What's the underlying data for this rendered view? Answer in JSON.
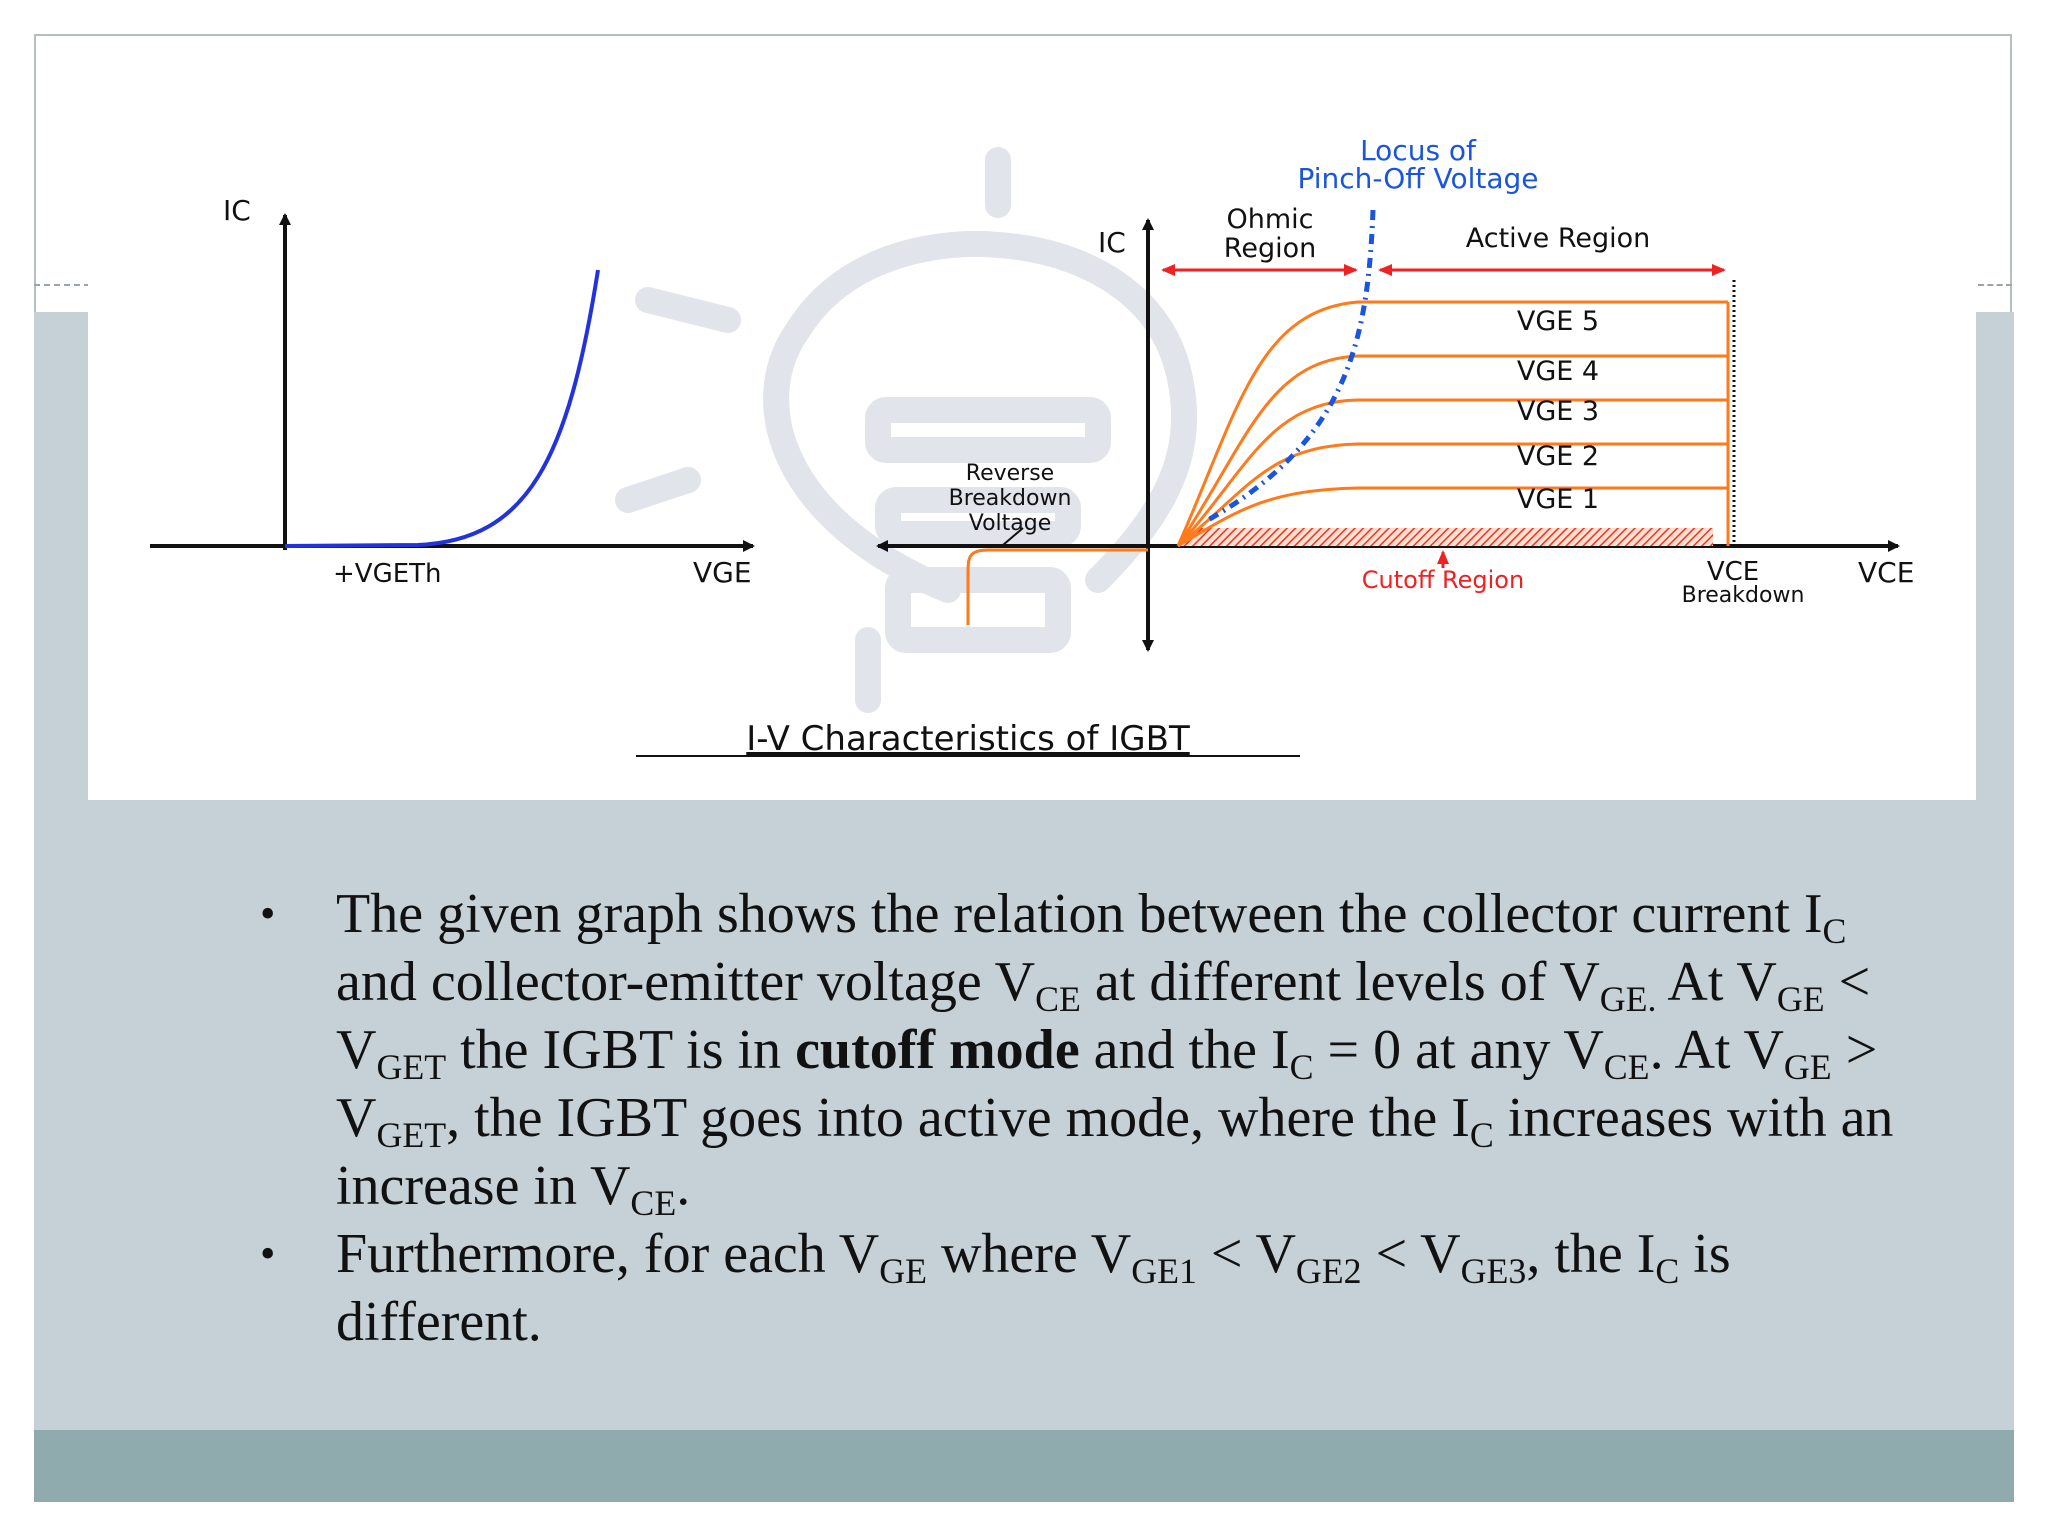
{
  "diagram": {
    "title": "I-V Characteristics of IGBT",
    "left": {
      "y_axis": "IC",
      "threshold_label": "+VGETh",
      "x_axis": "VGE"
    },
    "right": {
      "y_axis": "IC",
      "x_axis": "VCE",
      "locus_label": [
        "Locus of",
        "Pinch-Off Voltage"
      ],
      "ohmic_label": [
        "Ohmic",
        "Region"
      ],
      "active_label": "Active Region",
      "reverse_label": [
        "Reverse",
        "Breakdown",
        "Voltage"
      ],
      "cutoff_label": "Cutoff Region",
      "breakdown_label": [
        "VCE",
        "Breakdown"
      ],
      "curves": [
        "VGE 5",
        "VGE 4",
        "VGE 3",
        "VGE 2",
        "VGE 1"
      ]
    },
    "colors": {
      "transfer_curve": "#2233dd",
      "output_curves": "#ff7a1a",
      "locus": "#1a55dd",
      "arrows": "#ee2222",
      "axes": "#111111"
    }
  },
  "bullets": [
    {
      "parts": [
        {
          "t": "The given graph shows the relation between the collector current I"
        },
        {
          "t": "C",
          "s": "sub"
        },
        {
          "t": " and collector-emitter voltage V"
        },
        {
          "t": "CE",
          "s": "sub"
        },
        {
          "t": " at different levels of V"
        },
        {
          "t": "GE.",
          "s": "sub"
        },
        {
          "t": " At V"
        },
        {
          "t": "GE",
          "s": "sub"
        },
        {
          "t": " < V"
        },
        {
          "t": "GET",
          "s": "sub"
        },
        {
          "t": " the IGBT is in "
        },
        {
          "t": "cutoff mode",
          "s": "b"
        },
        {
          "t": " and the I"
        },
        {
          "t": "C",
          "s": "sub"
        },
        {
          "t": " = 0 at any V"
        },
        {
          "t": "CE",
          "s": "sub"
        },
        {
          "t": ". At V"
        },
        {
          "t": "GE",
          "s": "sub"
        },
        {
          "t": " > V"
        },
        {
          "t": "GET",
          "s": "sub"
        },
        {
          "t": ", the IGBT goes into active mode, where the I"
        },
        {
          "t": "C",
          "s": "sub"
        },
        {
          "t": " increases with an increase in V"
        },
        {
          "t": "CE",
          "s": "sub"
        },
        {
          "t": "."
        }
      ]
    },
    {
      "parts": [
        {
          "t": "Furthermore, for each V"
        },
        {
          "t": "GE",
          "s": "sub"
        },
        {
          "t": " where V"
        },
        {
          "t": "GE1",
          "s": "sub"
        },
        {
          "t": " < V"
        },
        {
          "t": "GE2",
          "s": "sub"
        },
        {
          "t": " < V"
        },
        {
          "t": "GE3",
          "s": "sub"
        },
        {
          "t": ", the I"
        },
        {
          "t": "C",
          "s": "sub"
        },
        {
          "t": " is different."
        }
      ]
    }
  ]
}
